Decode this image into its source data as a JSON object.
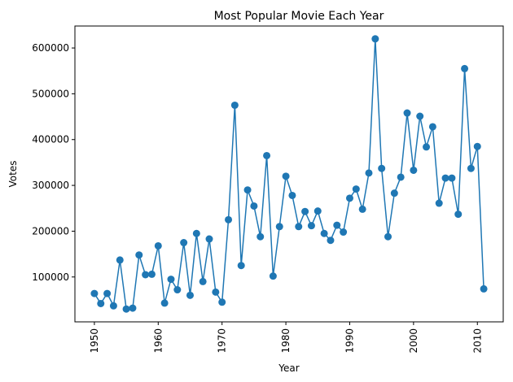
{
  "chart_data": {
    "type": "line",
    "title": "Most Popular Movie Each Year",
    "xlabel": "Year",
    "ylabel": "Votes",
    "xlim": [
      1946.95,
      2014.05
    ],
    "ylim": [
      2000,
      648000
    ],
    "xticks": [
      1950,
      1960,
      1970,
      1980,
      1990,
      2000,
      2010
    ],
    "yticks": [
      100000,
      200000,
      300000,
      400000,
      500000,
      600000
    ],
    "grid": false,
    "color": "#1f77b4",
    "series": [
      {
        "x": [
          1950,
          1951,
          1952,
          1953,
          1954,
          1955,
          1956,
          1957,
          1958,
          1959,
          1960,
          1961,
          1962,
          1963,
          1964,
          1965,
          1966,
          1967,
          1968,
          1969,
          1970,
          1971,
          1972,
          1973,
          1974,
          1975,
          1976,
          1977,
          1978,
          1979,
          1980,
          1981,
          1982,
          1983,
          1984,
          1985,
          1986,
          1987,
          1988,
          1989,
          1990,
          1991,
          1992,
          1993,
          1994,
          1995,
          1996,
          1997,
          1998,
          1999,
          2000,
          2001,
          2002,
          2003,
          2004,
          2005,
          2006,
          2007,
          2008,
          2009,
          2010,
          2011
        ],
        "y": [
          64000,
          42000,
          64000,
          37000,
          137000,
          30000,
          32000,
          148000,
          105000,
          106000,
          168000,
          43000,
          95000,
          72000,
          175000,
          60000,
          195000,
          90000,
          183000,
          67000,
          45000,
          225000,
          475000,
          125000,
          290000,
          255000,
          188000,
          365000,
          102000,
          210000,
          320000,
          278000,
          210000,
          243000,
          212000,
          244000,
          195000,
          180000,
          213000,
          198000,
          272000,
          292000,
          248000,
          327000,
          620000,
          337000,
          188000,
          283000,
          318000,
          458000,
          333000,
          451000,
          384000,
          428000,
          261000,
          316000,
          316000,
          237000,
          555000,
          337000,
          385000,
          74000
        ]
      }
    ]
  }
}
